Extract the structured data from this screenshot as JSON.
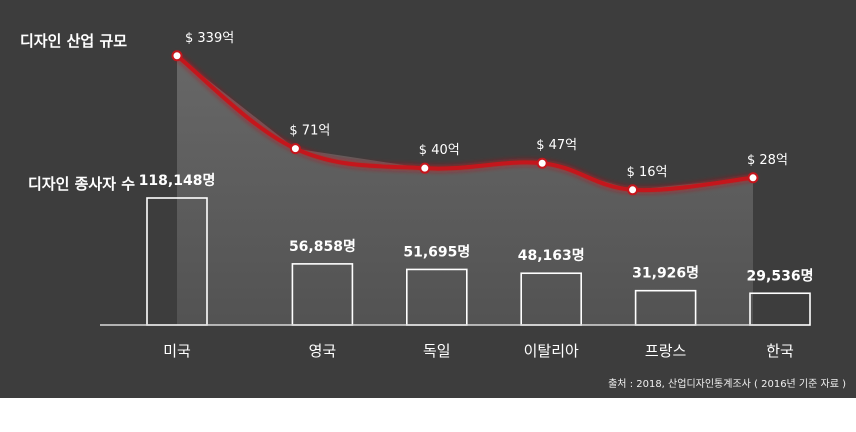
{
  "labels": {
    "industry": "디자인 산업 규모",
    "employees": "디자인  종사자 수"
  },
  "source": "출처 : 2018, 산업디자인통계조사 ( 2016년 기준 자료 )",
  "colors": {
    "background": "#3d3d3d",
    "line": "#c4161c",
    "bar_outline": "#ffffff",
    "area": "#8a8a8a"
  },
  "chart_data": {
    "type": "bar",
    "categories": [
      "미국",
      "영국",
      "독일",
      "이탈리아",
      "프랑스",
      "한국"
    ],
    "series": [
      {
        "values": [
          118148,
          56858,
          51695,
          48163,
          31926,
          29536
        ],
        "value_labels": [
          "118,148명",
          "56,858명",
          "51,695명",
          "48,163명",
          "31,926명",
          "29,536명"
        ]
      },
      {
        "chart_type": "line",
        "values": [
          339,
          71,
          40,
          47,
          16,
          28
        ],
        "value_labels": [
          "$ 339억",
          "$ 71억",
          "$ 40억",
          "$ 47억",
          "$ 16억",
          "$ 28억"
        ]
      }
    ]
  }
}
